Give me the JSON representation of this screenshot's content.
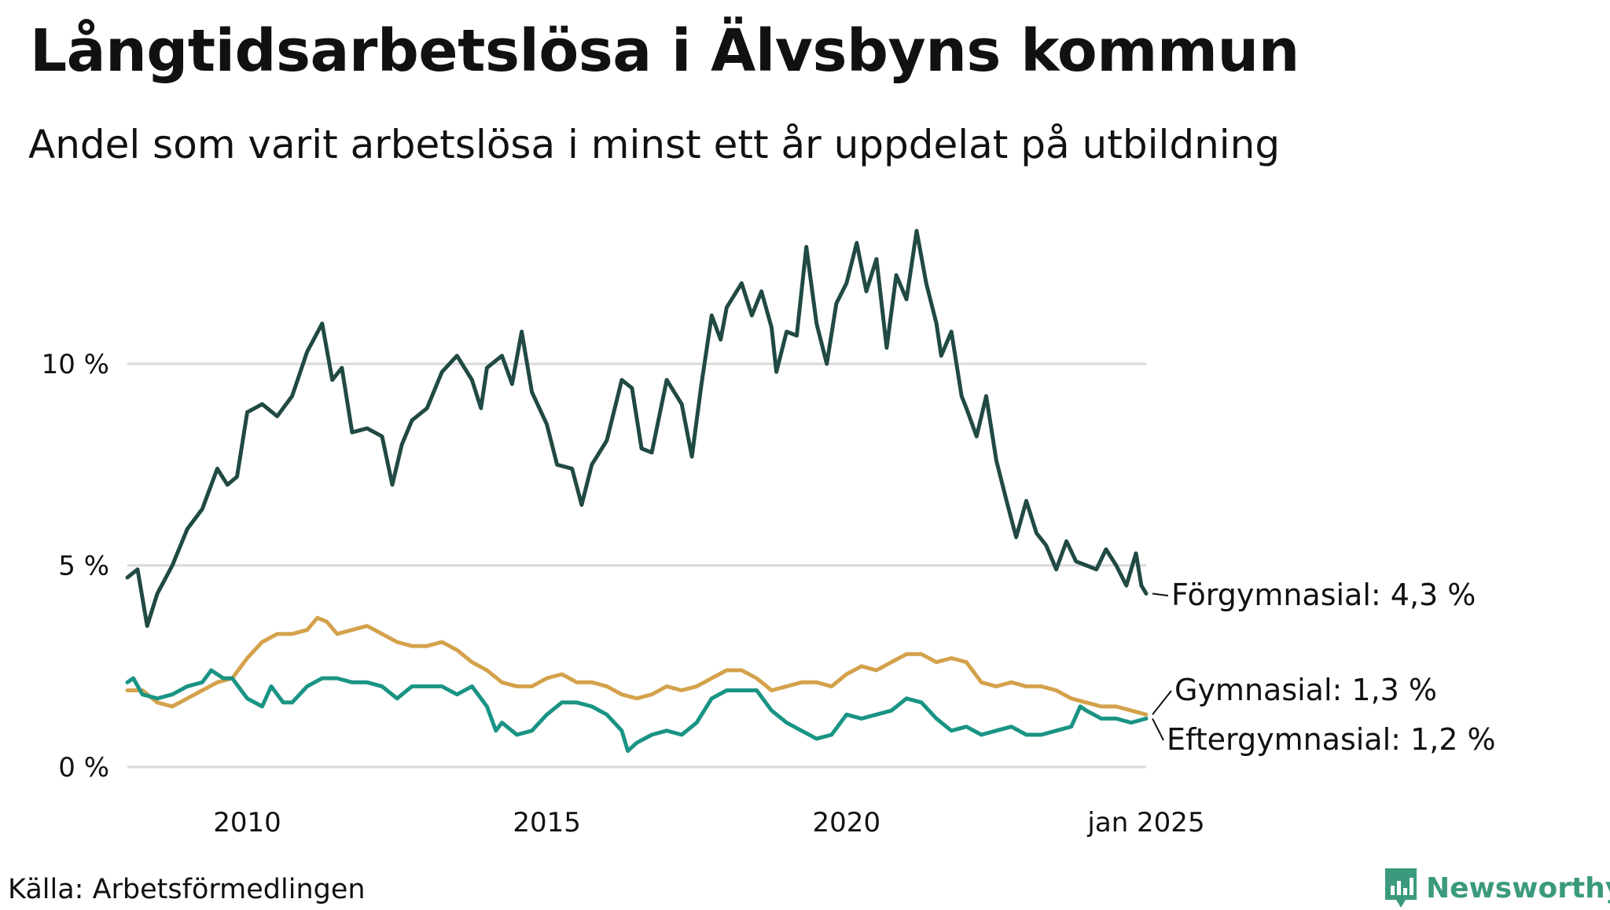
{
  "title": "Långtidsarbetslösa i Älvsbyns kommun",
  "subtitle": "Andel som varit arbetslösa i minst ett år uppdelat på utbildning",
  "source": "Källa: Arbetsförmedlingen",
  "brand": "Newsworthy",
  "colors": {
    "forgymnasial": "#204a43",
    "gymnasial": "#d4a24c",
    "eftergymnasial": "#1a9484",
    "grid": "#d9d9d9",
    "brand": "#3b9a7d"
  },
  "chart_data": {
    "type": "line",
    "title": "Långtidsarbetslösa i Älvsbyns kommun",
    "xlabel": "",
    "ylabel": "",
    "xlim": [
      2008.0,
      2025.0
    ],
    "ylim": [
      0,
      13.5
    ],
    "grid": true,
    "legend": "end-of-line labels",
    "x_ticks": [
      {
        "value": 2010.0,
        "label": "2010"
      },
      {
        "value": 2015.0,
        "label": "2015"
      },
      {
        "value": 2020.0,
        "label": "2020"
      },
      {
        "value": 2025.0,
        "label": "jan 2025"
      }
    ],
    "y_ticks": [
      {
        "value": 0,
        "label": "0 %"
      },
      {
        "value": 5,
        "label": "5 %"
      },
      {
        "value": 10,
        "label": "10 %"
      }
    ],
    "series": [
      {
        "name": "Förgymnasial",
        "label": "Förgymnasial: 4,3 %",
        "color": "#204a43",
        "points": [
          [
            2008.0,
            4.7
          ],
          [
            2008.17,
            4.9
          ],
          [
            2008.33,
            3.5
          ],
          [
            2008.5,
            4.3
          ],
          [
            2008.75,
            5.0
          ],
          [
            2009.0,
            5.9
          ],
          [
            2009.25,
            6.4
          ],
          [
            2009.5,
            7.4
          ],
          [
            2009.67,
            7.0
          ],
          [
            2009.83,
            7.2
          ],
          [
            2010.0,
            8.8
          ],
          [
            2010.25,
            9.0
          ],
          [
            2010.5,
            8.7
          ],
          [
            2010.75,
            9.2
          ],
          [
            2011.0,
            10.3
          ],
          [
            2011.25,
            11.0
          ],
          [
            2011.42,
            9.6
          ],
          [
            2011.58,
            9.9
          ],
          [
            2011.75,
            8.3
          ],
          [
            2012.0,
            8.4
          ],
          [
            2012.25,
            8.2
          ],
          [
            2012.42,
            7.0
          ],
          [
            2012.58,
            8.0
          ],
          [
            2012.75,
            8.6
          ],
          [
            2013.0,
            8.9
          ],
          [
            2013.25,
            9.8
          ],
          [
            2013.5,
            10.2
          ],
          [
            2013.75,
            9.6
          ],
          [
            2013.9,
            8.9
          ],
          [
            2014.0,
            9.9
          ],
          [
            2014.25,
            10.2
          ],
          [
            2014.42,
            9.5
          ],
          [
            2014.58,
            10.8
          ],
          [
            2014.75,
            9.3
          ],
          [
            2015.0,
            8.5
          ],
          [
            2015.17,
            7.5
          ],
          [
            2015.42,
            7.4
          ],
          [
            2015.58,
            6.5
          ],
          [
            2015.75,
            7.5
          ],
          [
            2016.0,
            8.1
          ],
          [
            2016.25,
            9.6
          ],
          [
            2016.42,
            9.4
          ],
          [
            2016.58,
            7.9
          ],
          [
            2016.75,
            7.8
          ],
          [
            2017.0,
            9.6
          ],
          [
            2017.25,
            9.0
          ],
          [
            2017.42,
            7.7
          ],
          [
            2017.58,
            9.5
          ],
          [
            2017.75,
            11.2
          ],
          [
            2017.9,
            10.6
          ],
          [
            2018.0,
            11.4
          ],
          [
            2018.25,
            12.0
          ],
          [
            2018.42,
            11.2
          ],
          [
            2018.58,
            11.8
          ],
          [
            2018.75,
            10.9
          ],
          [
            2018.83,
            9.8
          ],
          [
            2019.0,
            10.8
          ],
          [
            2019.17,
            10.7
          ],
          [
            2019.33,
            12.9
          ],
          [
            2019.5,
            11.0
          ],
          [
            2019.67,
            10.0
          ],
          [
            2019.83,
            11.5
          ],
          [
            2020.0,
            12.0
          ],
          [
            2020.17,
            13.0
          ],
          [
            2020.33,
            11.8
          ],
          [
            2020.5,
            12.6
          ],
          [
            2020.67,
            10.4
          ],
          [
            2020.83,
            12.2
          ],
          [
            2021.0,
            11.6
          ],
          [
            2021.17,
            13.3
          ],
          [
            2021.33,
            12.0
          ],
          [
            2021.5,
            11.0
          ],
          [
            2021.58,
            10.2
          ],
          [
            2021.75,
            10.8
          ],
          [
            2021.92,
            9.2
          ],
          [
            2022.0,
            8.9
          ],
          [
            2022.17,
            8.2
          ],
          [
            2022.33,
            9.2
          ],
          [
            2022.5,
            7.6
          ],
          [
            2022.67,
            6.6
          ],
          [
            2022.83,
            5.7
          ],
          [
            2023.0,
            6.6
          ],
          [
            2023.17,
            5.8
          ],
          [
            2023.33,
            5.5
          ],
          [
            2023.5,
            4.9
          ],
          [
            2023.67,
            5.6
          ],
          [
            2023.83,
            5.1
          ],
          [
            2024.0,
            5.0
          ],
          [
            2024.17,
            4.9
          ],
          [
            2024.33,
            5.4
          ],
          [
            2024.5,
            5.0
          ],
          [
            2024.67,
            4.5
          ],
          [
            2024.83,
            5.3
          ],
          [
            2024.92,
            4.5
          ],
          [
            2025.0,
            4.3
          ]
        ]
      },
      {
        "name": "Gymnasial",
        "label": "Gymnasial: 1,3 %",
        "color": "#d4a24c",
        "points": [
          [
            2008.0,
            1.9
          ],
          [
            2008.25,
            1.9
          ],
          [
            2008.5,
            1.6
          ],
          [
            2008.75,
            1.5
          ],
          [
            2009.0,
            1.7
          ],
          [
            2009.25,
            1.9
          ],
          [
            2009.5,
            2.1
          ],
          [
            2009.75,
            2.2
          ],
          [
            2010.0,
            2.7
          ],
          [
            2010.25,
            3.1
          ],
          [
            2010.5,
            3.3
          ],
          [
            2010.75,
            3.3
          ],
          [
            2011.0,
            3.4
          ],
          [
            2011.17,
            3.7
          ],
          [
            2011.33,
            3.6
          ],
          [
            2011.5,
            3.3
          ],
          [
            2011.75,
            3.4
          ],
          [
            2012.0,
            3.5
          ],
          [
            2012.25,
            3.3
          ],
          [
            2012.5,
            3.1
          ],
          [
            2012.75,
            3.0
          ],
          [
            2013.0,
            3.0
          ],
          [
            2013.25,
            3.1
          ],
          [
            2013.5,
            2.9
          ],
          [
            2013.75,
            2.6
          ],
          [
            2014.0,
            2.4
          ],
          [
            2014.25,
            2.1
          ],
          [
            2014.5,
            2.0
          ],
          [
            2014.75,
            2.0
          ],
          [
            2015.0,
            2.2
          ],
          [
            2015.25,
            2.3
          ],
          [
            2015.5,
            2.1
          ],
          [
            2015.75,
            2.1
          ],
          [
            2016.0,
            2.0
          ],
          [
            2016.25,
            1.8
          ],
          [
            2016.5,
            1.7
          ],
          [
            2016.75,
            1.8
          ],
          [
            2017.0,
            2.0
          ],
          [
            2017.25,
            1.9
          ],
          [
            2017.5,
            2.0
          ],
          [
            2017.75,
            2.2
          ],
          [
            2018.0,
            2.4
          ],
          [
            2018.25,
            2.4
          ],
          [
            2018.5,
            2.2
          ],
          [
            2018.75,
            1.9
          ],
          [
            2019.0,
            2.0
          ],
          [
            2019.25,
            2.1
          ],
          [
            2019.5,
            2.1
          ],
          [
            2019.75,
            2.0
          ],
          [
            2020.0,
            2.3
          ],
          [
            2020.25,
            2.5
          ],
          [
            2020.5,
            2.4
          ],
          [
            2020.75,
            2.6
          ],
          [
            2021.0,
            2.8
          ],
          [
            2021.25,
            2.8
          ],
          [
            2021.5,
            2.6
          ],
          [
            2021.75,
            2.7
          ],
          [
            2022.0,
            2.6
          ],
          [
            2022.25,
            2.1
          ],
          [
            2022.5,
            2.0
          ],
          [
            2022.75,
            2.1
          ],
          [
            2023.0,
            2.0
          ],
          [
            2023.25,
            2.0
          ],
          [
            2023.5,
            1.9
          ],
          [
            2023.75,
            1.7
          ],
          [
            2024.0,
            1.6
          ],
          [
            2024.25,
            1.5
          ],
          [
            2024.5,
            1.5
          ],
          [
            2024.75,
            1.4
          ],
          [
            2025.0,
            1.3
          ]
        ]
      },
      {
        "name": "Eftergymnasial",
        "label": "Eftergymnasial: 1,2 %",
        "color": "#1a9484",
        "points": [
          [
            2008.0,
            2.1
          ],
          [
            2008.1,
            2.2
          ],
          [
            2008.25,
            1.8
          ],
          [
            2008.5,
            1.7
          ],
          [
            2008.75,
            1.8
          ],
          [
            2009.0,
            2.0
          ],
          [
            2009.25,
            2.1
          ],
          [
            2009.4,
            2.4
          ],
          [
            2009.6,
            2.2
          ],
          [
            2009.75,
            2.2
          ],
          [
            2010.0,
            1.7
          ],
          [
            2010.25,
            1.5
          ],
          [
            2010.4,
            2.0
          ],
          [
            2010.6,
            1.6
          ],
          [
            2010.75,
            1.6
          ],
          [
            2011.0,
            2.0
          ],
          [
            2011.25,
            2.2
          ],
          [
            2011.5,
            2.2
          ],
          [
            2011.75,
            2.1
          ],
          [
            2012.0,
            2.1
          ],
          [
            2012.25,
            2.0
          ],
          [
            2012.5,
            1.7
          ],
          [
            2012.75,
            2.0
          ],
          [
            2013.0,
            2.0
          ],
          [
            2013.25,
            2.0
          ],
          [
            2013.5,
            1.8
          ],
          [
            2013.75,
            2.0
          ],
          [
            2014.0,
            1.5
          ],
          [
            2014.15,
            0.9
          ],
          [
            2014.25,
            1.1
          ],
          [
            2014.5,
            0.8
          ],
          [
            2014.75,
            0.9
          ],
          [
            2015.0,
            1.3
          ],
          [
            2015.25,
            1.6
          ],
          [
            2015.5,
            1.6
          ],
          [
            2015.75,
            1.5
          ],
          [
            2016.0,
            1.3
          ],
          [
            2016.25,
            0.9
          ],
          [
            2016.35,
            0.4
          ],
          [
            2016.5,
            0.6
          ],
          [
            2016.75,
            0.8
          ],
          [
            2017.0,
            0.9
          ],
          [
            2017.25,
            0.8
          ],
          [
            2017.5,
            1.1
          ],
          [
            2017.75,
            1.7
          ],
          [
            2018.0,
            1.9
          ],
          [
            2018.25,
            1.9
          ],
          [
            2018.5,
            1.9
          ],
          [
            2018.75,
            1.4
          ],
          [
            2019.0,
            1.1
          ],
          [
            2019.25,
            0.9
          ],
          [
            2019.5,
            0.7
          ],
          [
            2019.75,
            0.8
          ],
          [
            2020.0,
            1.3
          ],
          [
            2020.25,
            1.2
          ],
          [
            2020.5,
            1.3
          ],
          [
            2020.75,
            1.4
          ],
          [
            2021.0,
            1.7
          ],
          [
            2021.25,
            1.6
          ],
          [
            2021.5,
            1.2
          ],
          [
            2021.75,
            0.9
          ],
          [
            2022.0,
            1.0
          ],
          [
            2022.25,
            0.8
          ],
          [
            2022.5,
            0.9
          ],
          [
            2022.75,
            1.0
          ],
          [
            2023.0,
            0.8
          ],
          [
            2023.25,
            0.8
          ],
          [
            2023.5,
            0.9
          ],
          [
            2023.75,
            1.0
          ],
          [
            2023.9,
            1.5
          ],
          [
            2024.0,
            1.4
          ],
          [
            2024.25,
            1.2
          ],
          [
            2024.5,
            1.2
          ],
          [
            2024.75,
            1.1
          ],
          [
            2025.0,
            1.2
          ]
        ]
      }
    ]
  }
}
